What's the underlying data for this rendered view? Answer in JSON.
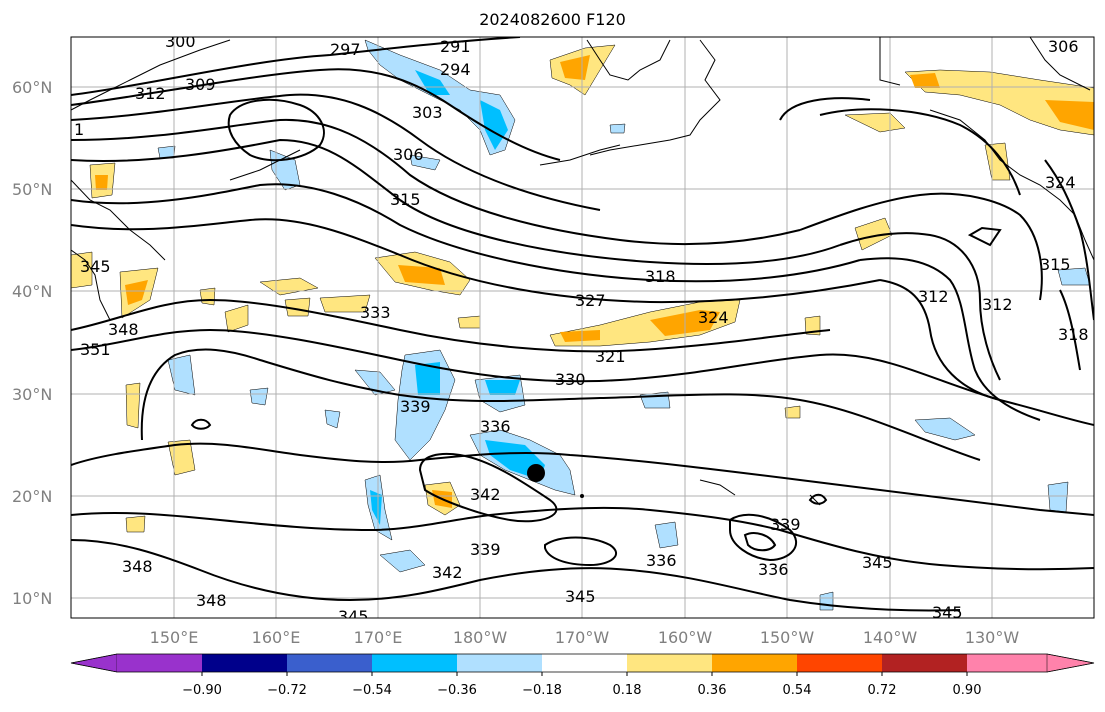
{
  "title": "2024082600 F120",
  "map": {
    "lat_labels": [
      "60°N",
      "50°N",
      "40°N",
      "30°N",
      "20°N",
      "10°N"
    ],
    "lon_labels": [
      "150°E",
      "160°E",
      "170°E",
      "180°W",
      "170°W",
      "160°W",
      "150°W",
      "140°W",
      "130°W"
    ],
    "contour_labels": [
      "300",
      "297",
      "291",
      "294",
      "306",
      "309",
      "312",
      "303",
      "306",
      "315",
      "345",
      "348",
      "351",
      "333",
      "318",
      "327",
      "324",
      "321",
      "330",
      "339",
      "336",
      "342",
      "339",
      "342",
      "348",
      "348",
      "345",
      "345",
      "336",
      "336",
      "339",
      "345",
      "345",
      "312",
      "312",
      "324",
      "315",
      "318",
      "1"
    ],
    "colors": {
      "coast": "#000000",
      "grid": "#b0b0b0",
      "neg_036": "#b0e0ff",
      "neg_054": "#00bfff",
      "pos_018": "#ffe680",
      "pos_036": "#ffa500"
    },
    "storm_marker": "black-dot"
  },
  "colorbar": {
    "labels": [
      "−0.90",
      "−0.72",
      "−0.54",
      "−0.36",
      "−0.18",
      "0.18",
      "0.36",
      "0.54",
      "0.72",
      "0.90"
    ],
    "colors": [
      "#9932cc",
      "#00008b",
      "#3a5fcd",
      "#00bfff",
      "#b0e0ff",
      "#ffffff",
      "#ffe680",
      "#ffa500",
      "#ff4500",
      "#b22222",
      "#ff82ab"
    ]
  }
}
